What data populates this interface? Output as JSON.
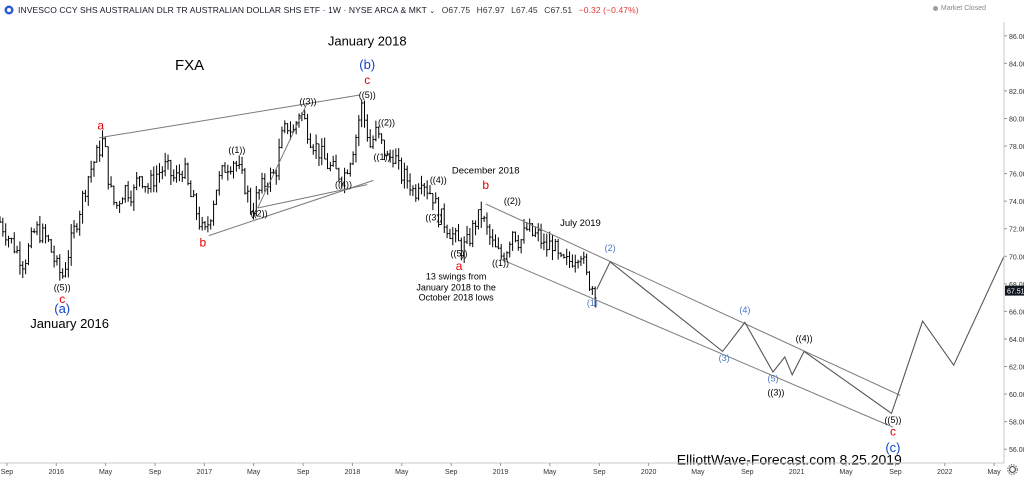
{
  "header": {
    "symbol": "INVESCO CCY SHS AUSTRALIAN DLR TR AUSTRALIAN DOLLAR SHS ETF",
    "interval": "1W",
    "exchange": "NYSE ARCA & MKT",
    "open": "O67.75",
    "high": "H67.97",
    "low": "L67.45",
    "close": "C67.51",
    "change": "−0.32 (−0.47%)",
    "market_status": "Market Closed",
    "icons": [
      "chevron-down-icon",
      "settings-gear-icon"
    ]
  },
  "colors": {
    "bars": "#000000",
    "wave_red": "#e00000",
    "wave_blue": "#1144cc",
    "cycle_blue": "#4a78c8",
    "lines": "#7a7a7a",
    "last_price_bg": "#131722"
  },
  "chart_data": {
    "type": "ohlc-bar",
    "title": "FXA",
    "y_axis": {
      "min": 55,
      "max": 87,
      "ticks": [
        56,
        58,
        60,
        62,
        64,
        66,
        68,
        70,
        72,
        74,
        76,
        78,
        80,
        82,
        84,
        86
      ],
      "tick_labels": [
        "56.00",
        "58.00",
        "60.00",
        "62.00",
        "64.00",
        "66.00",
        "68.00",
        "70.00",
        "72.00",
        "74.00",
        "76.00",
        "78.00",
        "80.00",
        "82.00",
        "84.00",
        "86.00"
      ]
    },
    "x_axis": {
      "start": 2015.62,
      "end": 2022.4,
      "ticks": [
        {
          "label": "Sep",
          "t": 2015.667
        },
        {
          "label": "2016",
          "t": 2016.0
        },
        {
          "label": "May",
          "t": 2016.333
        },
        {
          "label": "Sep",
          "t": 2016.667
        },
        {
          "label": "2017",
          "t": 2017.0
        },
        {
          "label": "May",
          "t": 2017.333
        },
        {
          "label": "Sep",
          "t": 2017.667
        },
        {
          "label": "2018",
          "t": 2018.0
        },
        {
          "label": "May",
          "t": 2018.333
        },
        {
          "label": "Sep",
          "t": 2018.667
        },
        {
          "label": "2019",
          "t": 2019.0
        },
        {
          "label": "May",
          "t": 2019.333
        },
        {
          "label": "Sep",
          "t": 2019.667
        },
        {
          "label": "2020",
          "t": 2020.0
        },
        {
          "label": "May",
          "t": 2020.333
        },
        {
          "label": "Sep",
          "t": 2020.667
        },
        {
          "label": "2021",
          "t": 2021.0
        },
        {
          "label": "May",
          "t": 2021.333
        },
        {
          "label": "Sep",
          "t": 2021.667
        },
        {
          "label": "2022",
          "t": 2022.0
        },
        {
          "label": "May",
          "t": 2022.333
        }
      ]
    },
    "last_price": "67.51",
    "price_path": [
      [
        2015.62,
        72.5
      ],
      [
        2015.7,
        71.0
      ],
      [
        2015.78,
        69.5
      ],
      [
        2015.86,
        72.0
      ],
      [
        2015.94,
        71.2
      ],
      [
        2016.0,
        69.3
      ],
      [
        2016.04,
        68.5
      ],
      [
        2016.1,
        71.0
      ],
      [
        2016.16,
        73.5
      ],
      [
        2016.22,
        76.0
      ],
      [
        2016.28,
        77.5
      ],
      [
        2016.32,
        78.5
      ],
      [
        2016.36,
        75.0
      ],
      [
        2016.4,
        73.5
      ],
      [
        2016.46,
        75.0
      ],
      [
        2016.52,
        74.5
      ],
      [
        2016.56,
        76.0
      ],
      [
        2016.62,
        75.0
      ],
      [
        2016.68,
        76.0
      ],
      [
        2016.74,
        76.5
      ],
      [
        2016.8,
        75.5
      ],
      [
        2016.86,
        76.5
      ],
      [
        2016.9,
        74.5
      ],
      [
        2016.94,
        73.5
      ],
      [
        2016.98,
        72.0
      ],
      [
        2017.0,
        71.5
      ],
      [
        2017.04,
        73.0
      ],
      [
        2017.08,
        75.0
      ],
      [
        2017.14,
        76.5
      ],
      [
        2017.2,
        77.0
      ],
      [
        2017.24,
        76.0
      ],
      [
        2017.28,
        75.0
      ],
      [
        2017.32,
        73.2
      ],
      [
        2017.36,
        74.5
      ],
      [
        2017.42,
        75.5
      ],
      [
        2017.48,
        76.0
      ],
      [
        2017.52,
        78.5
      ],
      [
        2017.56,
        79.5
      ],
      [
        2017.6,
        79.0
      ],
      [
        2017.64,
        80.5
      ],
      [
        2017.67,
        80.0
      ],
      [
        2017.72,
        78.5
      ],
      [
        2017.78,
        77.5
      ],
      [
        2017.84,
        76.5
      ],
      [
        2017.9,
        76.0
      ],
      [
        2017.94,
        75.8
      ],
      [
        2017.98,
        77.0
      ],
      [
        2018.02,
        78.5
      ],
      [
        2018.06,
        81.0
      ],
      [
        2018.08,
        80.0
      ],
      [
        2018.12,
        78.0
      ],
      [
        2018.16,
        79.0
      ],
      [
        2018.2,
        78.0
      ],
      [
        2018.24,
        77.0
      ],
      [
        2018.28,
        77.5
      ],
      [
        2018.32,
        76.0
      ],
      [
        2018.38,
        75.5
      ],
      [
        2018.42,
        74.5
      ],
      [
        2018.46,
        76.0
      ],
      [
        2018.5,
        75.0
      ],
      [
        2018.54,
        74.5
      ],
      [
        2018.58,
        73.0
      ],
      [
        2018.62,
        72.5
      ],
      [
        2018.68,
        71.5
      ],
      [
        2018.74,
        70.5
      ],
      [
        2018.78,
        71.0
      ],
      [
        2018.83,
        72.5
      ],
      [
        2018.87,
        73.0
      ],
      [
        2018.92,
        71.5
      ],
      [
        2018.96,
        70.5
      ],
      [
        2019.0,
        70.0
      ],
      [
        2019.04,
        70.5
      ],
      [
        2019.08,
        72.0
      ],
      [
        2019.13,
        71.0
      ],
      [
        2019.18,
        72.0
      ],
      [
        2019.22,
        71.5
      ],
      [
        2019.26,
        71.5
      ],
      [
        2019.3,
        70.5
      ],
      [
        2019.35,
        71.0
      ],
      [
        2019.4,
        69.5
      ],
      [
        2019.45,
        69.5
      ],
      [
        2019.5,
        70.0
      ],
      [
        2019.54,
        70.5
      ],
      [
        2019.58,
        68.5
      ],
      [
        2019.62,
        67.8
      ],
      [
        2019.65,
        67.6
      ]
    ],
    "projection": [
      [
        2019.65,
        67.6
      ],
      [
        2019.74,
        69.6
      ],
      [
        2020.5,
        63.1
      ],
      [
        2020.65,
        65.2
      ],
      [
        2020.84,
        61.6
      ],
      [
        2020.92,
        62.7
      ],
      [
        2020.97,
        61.4
      ],
      [
        2021.05,
        63.1
      ],
      [
        2021.64,
        58.6
      ],
      [
        2021.85,
        65.3
      ],
      [
        2022.06,
        62.1
      ],
      [
        2022.4,
        70.0
      ]
    ],
    "channels": [
      [
        [
          2016.29,
          78.6
        ],
        [
          2018.05,
          81.7
        ]
      ],
      [
        [
          2017.03,
          71.5
        ],
        [
          2018.14,
          75.5
        ]
      ],
      [
        [
          2017.36,
          73.5
        ],
        [
          2018.1,
          75.2
        ]
      ],
      [
        [
          2017.36,
          73.5
        ],
        [
          2017.69,
          81.0
        ]
      ],
      [
        [
          2018.9,
          73.8
        ],
        [
          2021.7,
          59.9
        ]
      ],
      [
        [
          2019.0,
          69.8
        ],
        [
          2021.65,
          57.6
        ]
      ]
    ],
    "labels": [
      {
        "id": "fxa",
        "text": "FXA",
        "t": 2016.9,
        "p": 83.5,
        "color": "#000000",
        "size": 15
      },
      {
        "id": "jan2018",
        "text": "January 2018",
        "t": 2018.1,
        "p": 85.3,
        "color": "#000000",
        "size": 13
      },
      {
        "id": "b-blue-top",
        "text": "(b)",
        "t": 2018.1,
        "p": 83.6,
        "color": "#1144cc",
        "size": 13
      },
      {
        "id": "c-red-top",
        "text": "c",
        "t": 2018.1,
        "p": 82.5,
        "color": "#e00000",
        "size": 12
      },
      {
        "id": "w5-top",
        "text": "((5))",
        "t": 2018.1,
        "p": 81.5,
        "color": "#000000",
        "size": 9
      },
      {
        "id": "a-red-2016",
        "text": "a",
        "t": 2016.3,
        "p": 79.2,
        "color": "#e00000",
        "size": 12
      },
      {
        "id": "b-red-2017",
        "text": "b",
        "t": 2016.99,
        "p": 70.7,
        "color": "#e00000",
        "size": 12
      },
      {
        "id": "w1-2017",
        "text": "((1))",
        "t": 2017.22,
        "p": 77.5,
        "color": "#000000",
        "size": 9
      },
      {
        "id": "w3-2017",
        "text": "((3))",
        "t": 2017.7,
        "p": 81.0,
        "color": "#000000",
        "size": 9
      },
      {
        "id": "w2-2017",
        "text": "((2))",
        "t": 2017.37,
        "p": 72.9,
        "color": "#000000",
        "size": 9
      },
      {
        "id": "w4-2017",
        "text": "((4))",
        "t": 2017.94,
        "p": 75.0,
        "color": "#000000",
        "size": 9
      },
      {
        "id": "w2-2018",
        "text": "((2))",
        "t": 2018.23,
        "p": 79.5,
        "color": "#000000",
        "size": 9
      },
      {
        "id": "w1-2018",
        "text": "((1))",
        "t": 2018.2,
        "p": 77.0,
        "color": "#000000",
        "size": 9
      },
      {
        "id": "w4-2018",
        "text": "((4))",
        "t": 2018.58,
        "p": 75.3,
        "color": "#000000",
        "size": 9
      },
      {
        "id": "w3-2018",
        "text": "((3))",
        "t": 2018.55,
        "p": 72.6,
        "color": "#000000",
        "size": 9
      },
      {
        "id": "w5-2018",
        "text": "((5))",
        "t": 2018.72,
        "p": 70.0,
        "color": "#000000",
        "size": 9
      },
      {
        "id": "a-red-2018",
        "text": "a",
        "t": 2018.72,
        "p": 69.0,
        "color": "#e00000",
        "size": 12
      },
      {
        "id": "dec2018",
        "text": "December 2018",
        "t": 2018.9,
        "p": 76.0,
        "color": "#000000",
        "size": 9.5
      },
      {
        "id": "b-red-2018",
        "text": "b",
        "t": 2018.9,
        "p": 74.9,
        "color": "#e00000",
        "size": 12
      },
      {
        "id": "w2-2019",
        "text": "((2))",
        "t": 2019.08,
        "p": 73.8,
        "color": "#000000",
        "size": 9
      },
      {
        "id": "w1-2019",
        "text": "((1))",
        "t": 2019.0,
        "p": 69.3,
        "color": "#000000",
        "size": 9
      },
      {
        "id": "swings1",
        "text": "13 swings from",
        "t": 2018.7,
        "p": 68.3,
        "color": "#000000",
        "size": 9
      },
      {
        "id": "swings2",
        "text": "January 2018 to the",
        "t": 2018.7,
        "p": 67.5,
        "color": "#000000",
        "size": 9
      },
      {
        "id": "swings3",
        "text": "October 2018 lows",
        "t": 2018.7,
        "p": 66.8,
        "color": "#000000",
        "size": 9
      },
      {
        "id": "jul2019",
        "text": "July 2019",
        "t": 2019.54,
        "p": 72.2,
        "color": "#000000",
        "size": 9.5
      },
      {
        "id": "c2",
        "text": "(2)",
        "t": 2019.74,
        "p": 70.4,
        "color": "#4a78c8",
        "size": 9
      },
      {
        "id": "c1",
        "text": "(1)",
        "t": 2019.62,
        "p": 66.4,
        "color": "#4a78c8",
        "size": 9
      },
      {
        "id": "c4",
        "text": "(4)",
        "t": 2020.65,
        "p": 65.9,
        "color": "#4a78c8",
        "size": 9
      },
      {
        "id": "c3",
        "text": "(3)",
        "t": 2020.51,
        "p": 62.4,
        "color": "#4a78c8",
        "size": 9
      },
      {
        "id": "w4-2021",
        "text": "((4))",
        "t": 2021.05,
        "p": 63.8,
        "color": "#000000",
        "size": 9
      },
      {
        "id": "c5",
        "text": "(5)",
        "t": 2020.84,
        "p": 60.9,
        "color": "#4a78c8",
        "size": 9
      },
      {
        "id": "w3-2021",
        "text": "((3))",
        "t": 2020.86,
        "p": 59.9,
        "color": "#000000",
        "size": 9
      },
      {
        "id": "w5-2021",
        "text": "((5))",
        "t": 2021.65,
        "p": 57.9,
        "color": "#000000",
        "size": 9
      },
      {
        "id": "c-red-2021",
        "text": "c",
        "t": 2021.65,
        "p": 57.0,
        "color": "#e00000",
        "size": 12
      },
      {
        "id": "c-blue-2021",
        "text": "(c)",
        "t": 2021.65,
        "p": 55.8,
        "color": "#1144cc",
        "size": 13
      },
      {
        "id": "w5-2016",
        "text": "((5))",
        "t": 2016.04,
        "p": 67.5,
        "color": "#000000",
        "size": 9
      },
      {
        "id": "c-red-2016",
        "text": "c",
        "t": 2016.04,
        "p": 66.6,
        "color": "#e00000",
        "size": 12
      },
      {
        "id": "a-blue-2016",
        "text": "(a)",
        "t": 2016.04,
        "p": 65.9,
        "color": "#1144cc",
        "size": 13
      },
      {
        "id": "jan2016",
        "text": "January 2016",
        "t": 2016.09,
        "p": 64.8,
        "color": "#000000",
        "size": 13
      },
      {
        "id": "watermark",
        "text": "ElliottWave-Forecast.com 8.25.2019",
        "t": 2020.95,
        "p": 54.9,
        "color": "#000000",
        "size": 14
      }
    ]
  }
}
